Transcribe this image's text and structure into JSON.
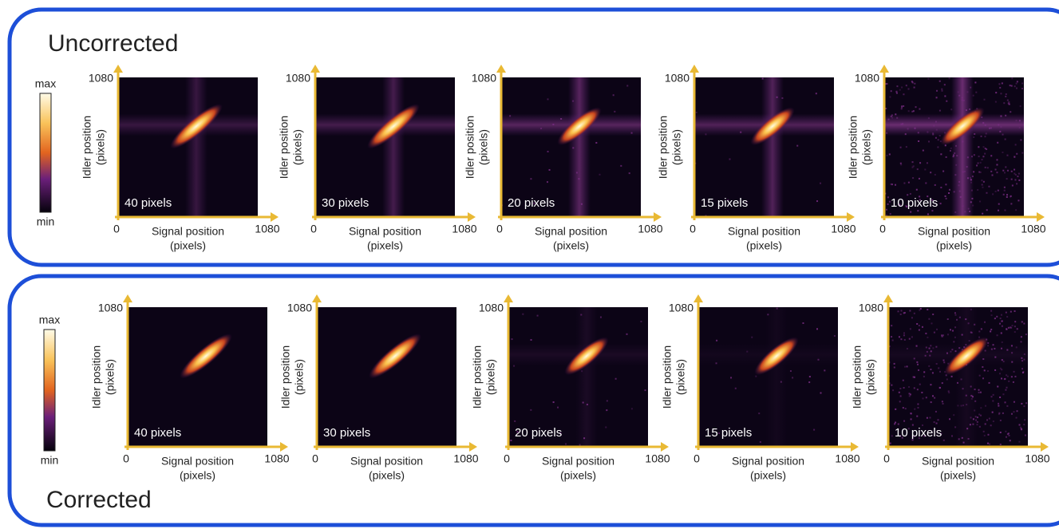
{
  "rows": [
    {
      "title": "Uncorrected",
      "colorbar": {
        "max": "max",
        "min": "min"
      },
      "panels": [
        {
          "label": "40 pixels",
          "y_tick": "1080",
          "y_label": [
            "Idler position",
            "(pixels)"
          ],
          "x_ticks": [
            "0",
            "1080"
          ],
          "x_label": [
            "Signal position",
            "(pixels)"
          ]
        },
        {
          "label": "30 pixels",
          "y_tick": "1080",
          "y_label": [
            "Idler position",
            "(pixels)"
          ],
          "x_ticks": [
            "0",
            "1080"
          ],
          "x_label": [
            "Signal position",
            "(pixels)"
          ]
        },
        {
          "label": "20 pixels",
          "y_tick": "1080",
          "y_label": [
            "Idler position",
            "(pixels)"
          ],
          "x_ticks": [
            "0",
            "1080"
          ],
          "x_label": [
            "Signal position",
            "(pixels)"
          ]
        },
        {
          "label": "15 pixels",
          "y_tick": "1080",
          "y_label": [
            "Idler position",
            "(pixels)"
          ],
          "x_ticks": [
            "0",
            "1080"
          ],
          "x_label": [
            "Signal position",
            "(pixels)"
          ]
        },
        {
          "label": "10 pixels",
          "y_tick": "1080",
          "y_label": [
            "Idler position",
            "(pixels)"
          ],
          "x_ticks": [
            "0",
            "1080"
          ],
          "x_label": [
            "Signal position",
            "(pixels)"
          ]
        }
      ]
    },
    {
      "title": "Corrected",
      "colorbar": {
        "max": "max",
        "min": "min"
      },
      "panels": [
        {
          "label": "40 pixels",
          "y_tick": "1080",
          "y_label": [
            "Idler position",
            "(pixels)"
          ],
          "x_ticks": [
            "0",
            "1080"
          ],
          "x_label": [
            "Signal position",
            "(pixels)"
          ]
        },
        {
          "label": "30 pixels",
          "y_tick": "1080",
          "y_label": [
            "Idler position",
            "(pixels)"
          ],
          "x_ticks": [
            "0",
            "1080"
          ],
          "x_label": [
            "Signal position",
            "(pixels)"
          ]
        },
        {
          "label": "20 pixels",
          "y_tick": "1080",
          "y_label": [
            "Idler position",
            "(pixels)"
          ],
          "x_ticks": [
            "0",
            "1080"
          ],
          "x_label": [
            "Signal position",
            "(pixels)"
          ]
        },
        {
          "label": "15 pixels",
          "y_tick": "1080",
          "y_label": [
            "Idler position",
            "(pixels)"
          ],
          "x_ticks": [
            "0",
            "1080"
          ],
          "x_label": [
            "Signal position",
            "(pixels)"
          ]
        },
        {
          "label": "10 pixels",
          "y_tick": "1080",
          "y_label": [
            "Idler position",
            "(pixels)"
          ],
          "x_ticks": [
            "0",
            "1080"
          ],
          "x_label": [
            "Signal position",
            "(pixels)"
          ]
        }
      ]
    }
  ]
}
